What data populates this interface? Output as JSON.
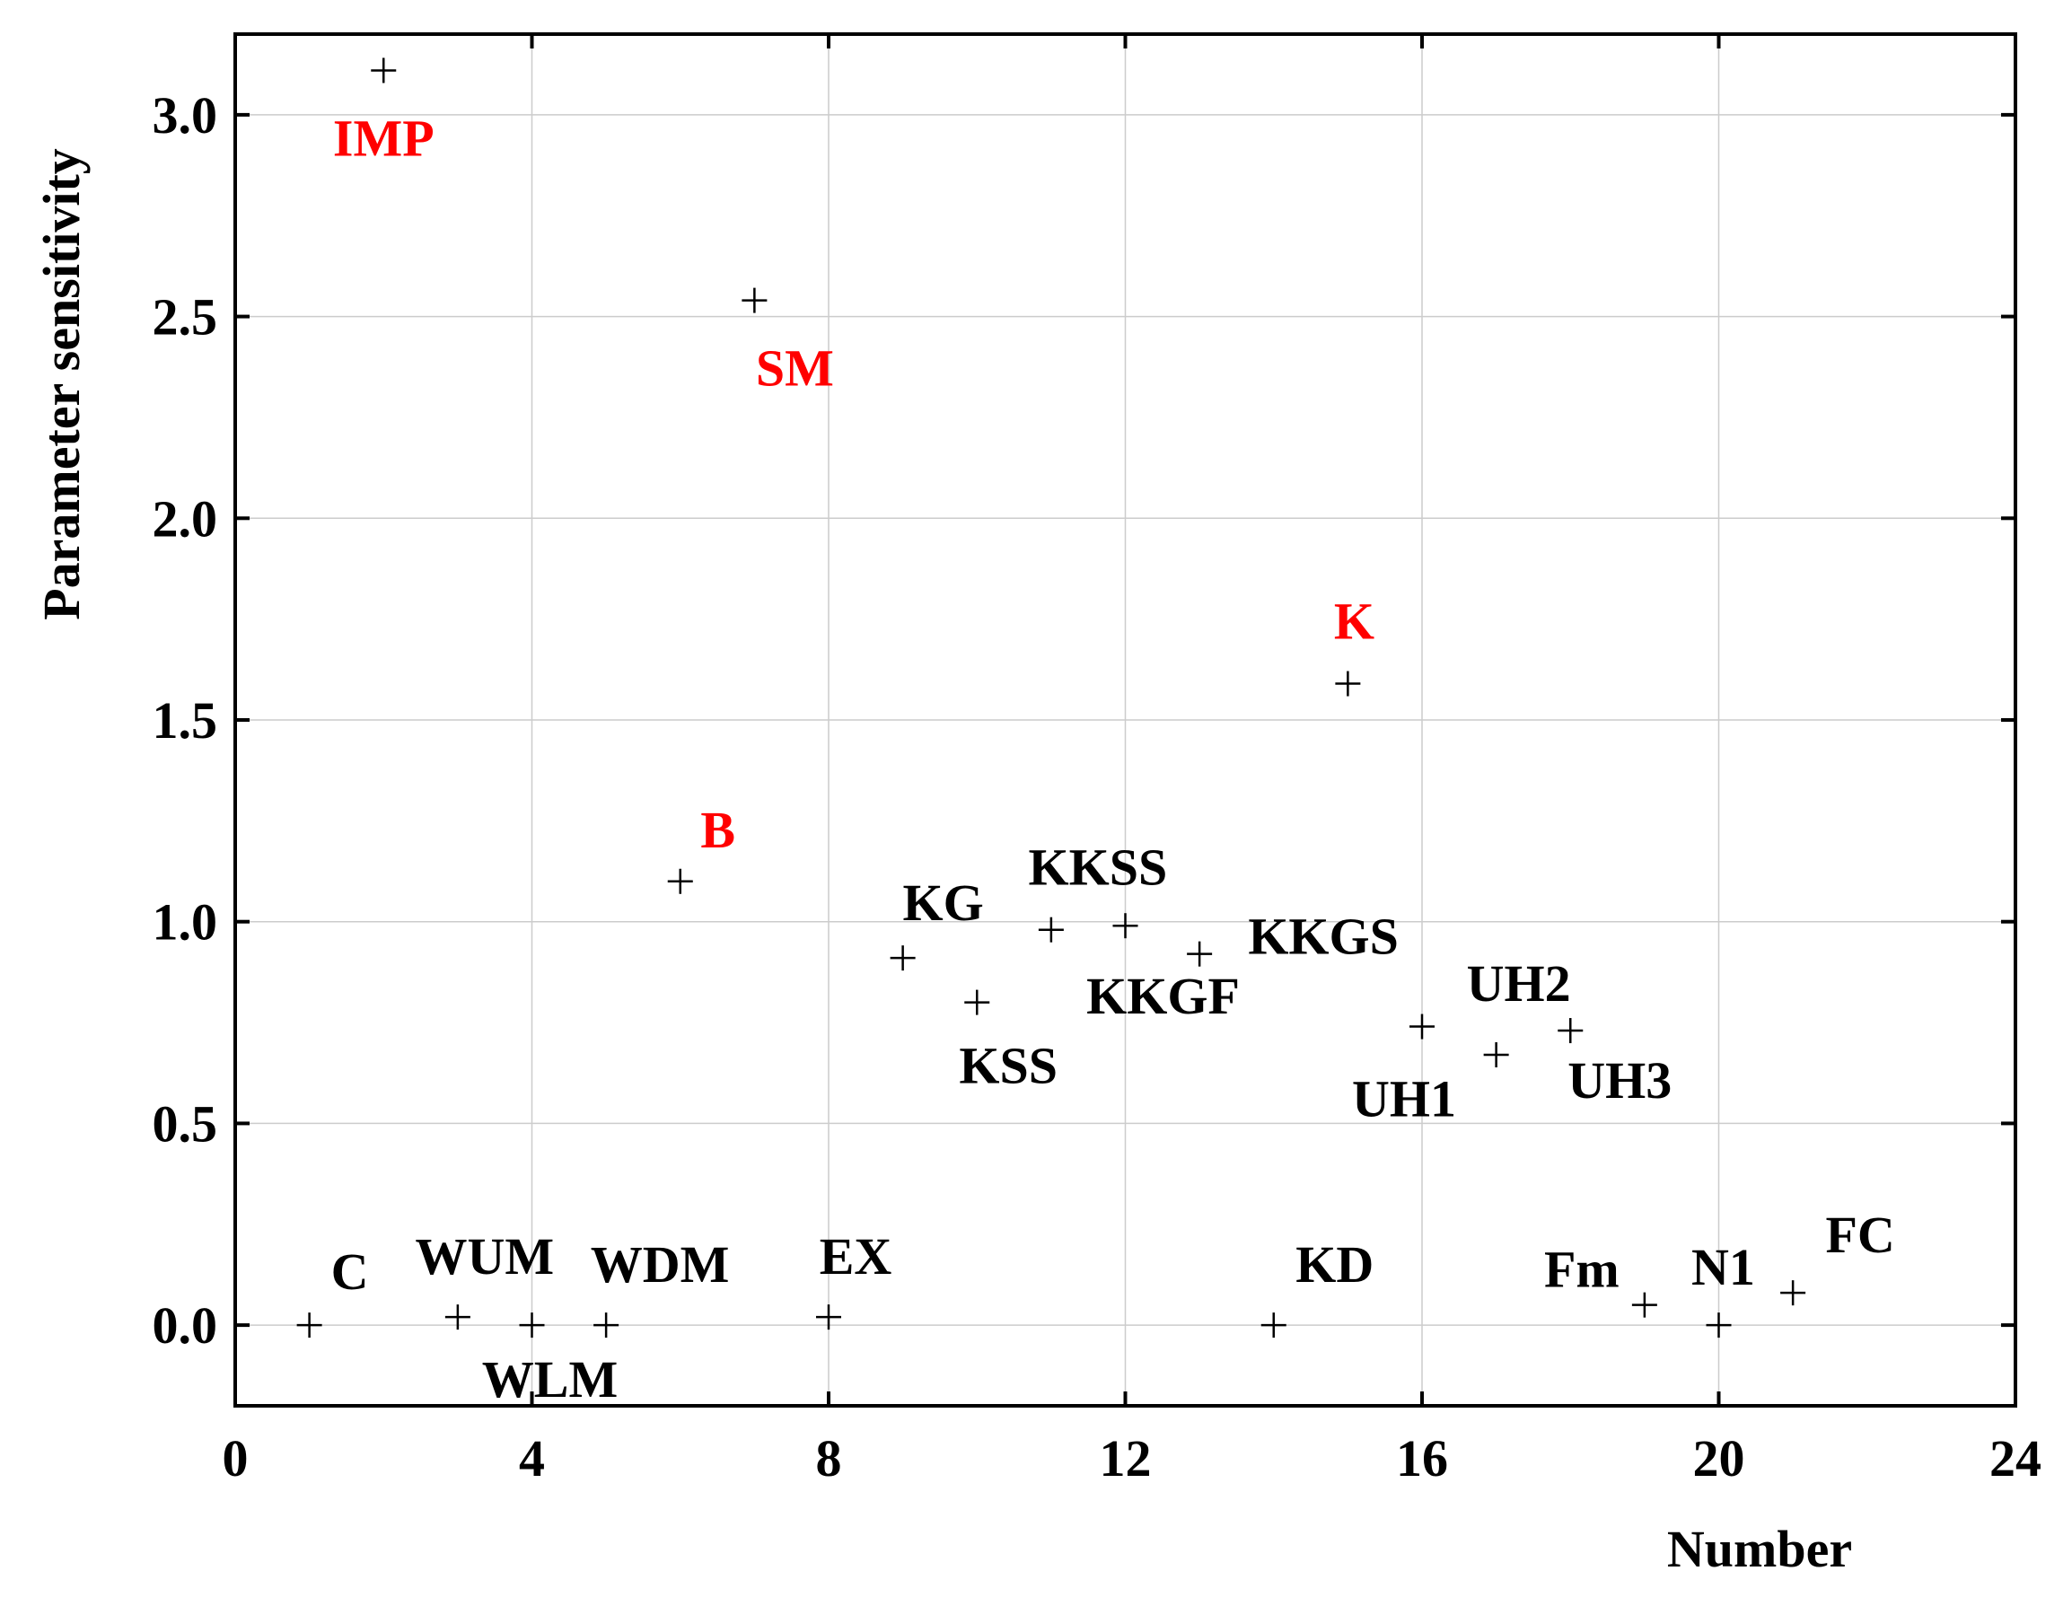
{
  "chart_data": {
    "type": "scatter",
    "title": "",
    "xlabel": "Number",
    "ylabel": "Parameter sensitivity",
    "xlim": [
      0,
      24
    ],
    "ylim": [
      -0.2,
      3.2
    ],
    "xticks": [
      0,
      4,
      8,
      12,
      16,
      20,
      24
    ],
    "xtick_labels": [
      "0",
      "4",
      "8",
      "12",
      "16",
      "20",
      "24"
    ],
    "yticks": [
      0.0,
      0.5,
      1.0,
      1.5,
      2.0,
      2.5,
      3.0
    ],
    "ytick_labels": [
      "0.0",
      "0.5",
      "1.0",
      "1.5",
      "2.0",
      "2.5",
      "3.0"
    ],
    "grid": true,
    "marker": "+",
    "marker_color": "#000000",
    "highlight_color": "#ff0000",
    "label_color": "#000000",
    "points": [
      {
        "label": "C",
        "x": 1,
        "y": 0.0,
        "highlight": false
      },
      {
        "label": "IMP",
        "x": 2,
        "y": 3.11,
        "highlight": true
      },
      {
        "label": "WUM",
        "x": 3,
        "y": 0.02,
        "highlight": false
      },
      {
        "label": "WLM",
        "x": 4,
        "y": 0.0,
        "highlight": false
      },
      {
        "label": "WDM",
        "x": 5,
        "y": 0.0,
        "highlight": false
      },
      {
        "label": "B",
        "x": 6,
        "y": 1.1,
        "highlight": true
      },
      {
        "label": "SM",
        "x": 7,
        "y": 2.54,
        "highlight": true
      },
      {
        "label": "EX",
        "x": 8,
        "y": 0.02,
        "highlight": false
      },
      {
        "label": "KG",
        "x": 9,
        "y": 0.91,
        "highlight": false
      },
      {
        "label": "KSS",
        "x": 10,
        "y": 0.8,
        "highlight": false
      },
      {
        "label": "KKSS",
        "x": 11,
        "y": 0.98,
        "highlight": false
      },
      {
        "label": "KKGF",
        "x": 12,
        "y": 0.99,
        "highlight": false
      },
      {
        "label": "KKGS",
        "x": 13,
        "y": 0.92,
        "highlight": false
      },
      {
        "label": "KD",
        "x": 14,
        "y": 0.0,
        "highlight": false
      },
      {
        "label": "K",
        "x": 15,
        "y": 1.59,
        "highlight": true
      },
      {
        "label": "UH1",
        "x": 16,
        "y": 0.74,
        "highlight": false
      },
      {
        "label": "UH2",
        "x": 17,
        "y": 0.67,
        "highlight": false
      },
      {
        "label": "UH3",
        "x": 18,
        "y": 0.73,
        "highlight": false
      },
      {
        "label": "Fm",
        "x": 19,
        "y": 0.05,
        "highlight": false
      },
      {
        "label": "N1",
        "x": 20,
        "y": 0.0,
        "highlight": false
      },
      {
        "label": "FC",
        "x": 21,
        "y": 0.08,
        "highlight": false
      }
    ]
  }
}
